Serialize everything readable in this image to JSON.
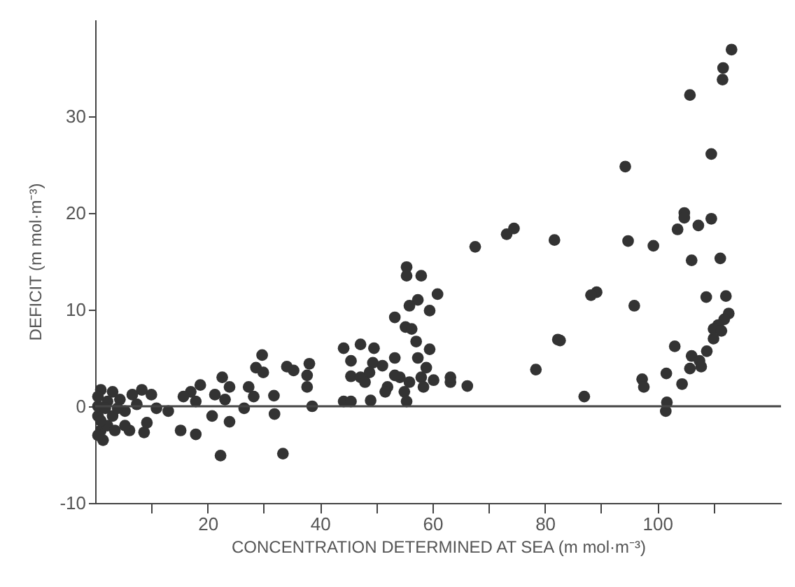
{
  "chart_data": {
    "type": "scatter",
    "xlabel": "CONCENTRATION DETERMINED AT SEA (m mol·m⁻³)",
    "ylabel": "DEFICIT (m mol·m⁻³)",
    "xlim": [
      0,
      122
    ],
    "ylim": [
      -10,
      40
    ],
    "xticks": [
      {
        "value": 10,
        "label": null
      },
      20,
      {
        "value": 30,
        "label": null
      },
      40,
      {
        "value": 50,
        "label": null
      },
      60,
      {
        "value": 70,
        "label": null
      },
      80,
      {
        "value": 90,
        "label": null
      },
      100,
      {
        "value": 110,
        "label": null
      }
    ],
    "yticks": [
      -10,
      0,
      10,
      20,
      30
    ],
    "grid": false,
    "marker": "circle",
    "ref_lines": [
      {
        "axis": "y",
        "value": 0,
        "color": "#444444"
      }
    ],
    "series": [
      {
        "color": "#333333",
        "x": [
          113.2,
          111.7,
          111.6,
          105.8,
          109.6,
          94.3,
          104.8,
          104.8,
          109.6,
          107.3,
          103.6,
          94.8,
          99.3,
          81.7,
          74.5,
          73.2,
          67.6,
          106.1,
          111.2,
          89.2,
          88.2,
          95.9,
          108.7,
          112.2,
          112.7,
          111.9,
          110.8,
          110.0,
          111.4,
          110.0,
          108.8,
          103.1,
          106.1,
          107.5,
          107.8,
          105.8,
          101.6,
          104.4,
          97.3,
          97.6,
          101.7,
          101.5,
          87.0,
          82.3,
          82.7,
          78.4,
          66.2,
          63.2,
          63.2,
          60.9,
          59.5,
          58.0,
          55.4,
          55.4,
          57.4,
          55.9,
          53.3,
          55.2,
          56.3,
          59.5,
          57.1,
          57.4,
          58.9,
          58.0,
          60.2,
          58.4,
          55.9,
          54.2,
          53.3,
          53.3,
          52.0,
          55.0,
          51.6,
          55.4,
          44.2,
          47.2,
          49.6,
          45.5,
          49.4,
          51.1,
          45.5,
          47.2,
          48.8,
          48.0,
          44.2,
          45.5,
          49.0,
          34.1,
          35.3,
          38.1,
          37.7,
          37.7,
          38.6,
          29.7,
          28.6,
          29.9,
          27.3,
          28.2,
          26.5,
          31.8,
          31.9,
          33.4,
          22.6,
          23.9,
          21.3,
          23.1,
          18.7,
          17.0,
          17.9,
          15.7,
          20.8,
          23.9,
          22.3,
          17.9,
          15.2,
          13.0,
          10.9,
          10.0,
          8.3,
          6.6,
          7.4,
          9.2,
          8.7,
          6.1,
          5.3,
          4.4,
          3.1,
          2.2,
          1.0,
          0.5,
          1.0,
          1.4,
          2.2,
          3.1,
          3.5,
          0.5,
          1.8,
          4.0,
          0.5,
          0.5,
          1.0,
          5.3
        ],
        "values": [
          36.9,
          35.0,
          33.8,
          32.2,
          26.1,
          24.8,
          20.0,
          19.5,
          19.4,
          18.7,
          18.3,
          17.1,
          16.6,
          17.2,
          18.4,
          17.8,
          16.5,
          15.1,
          15.3,
          11.8,
          11.5,
          10.4,
          11.3,
          11.4,
          9.6,
          9.0,
          8.4,
          8.0,
          7.8,
          7.0,
          5.7,
          6.2,
          5.2,
          4.7,
          4.1,
          3.9,
          3.4,
          2.3,
          2.8,
          2.0,
          0.4,
          -0.5,
          1.0,
          6.9,
          6.8,
          3.8,
          2.1,
          2.5,
          3.0,
          11.6,
          9.9,
          13.5,
          14.4,
          13.5,
          11.0,
          10.4,
          9.2,
          8.2,
          8.0,
          5.9,
          6.7,
          5.0,
          4.0,
          3.0,
          2.7,
          2.0,
          2.5,
          3.0,
          5.0,
          3.2,
          2.0,
          1.5,
          1.5,
          0.5,
          6.0,
          6.4,
          6.0,
          4.7,
          4.5,
          4.2,
          3.1,
          3.0,
          3.5,
          2.5,
          0.5,
          0.5,
          0.6,
          4.1,
          3.7,
          4.4,
          3.2,
          2.0,
          0.0,
          5.3,
          4.0,
          3.5,
          2.0,
          1.0,
          -0.2,
          1.1,
          -0.8,
          -4.9,
          3.0,
          2.0,
          1.2,
          0.7,
          2.2,
          1.5,
          0.5,
          1.0,
          -1.0,
          -1.6,
          -5.1,
          -2.9,
          -2.5,
          -0.5,
          -0.2,
          1.2,
          1.7,
          1.2,
          0.2,
          -1.7,
          -2.7,
          -2.5,
          -0.5,
          0.7,
          1.5,
          0.5,
          1.7,
          -1.0,
          -2.5,
          -3.5,
          -2.0,
          -1.0,
          -2.5,
          0.0,
          -0.2,
          -0.2,
          1.0,
          -3.0,
          -1.5,
          -2.0
        ]
      }
    ]
  }
}
